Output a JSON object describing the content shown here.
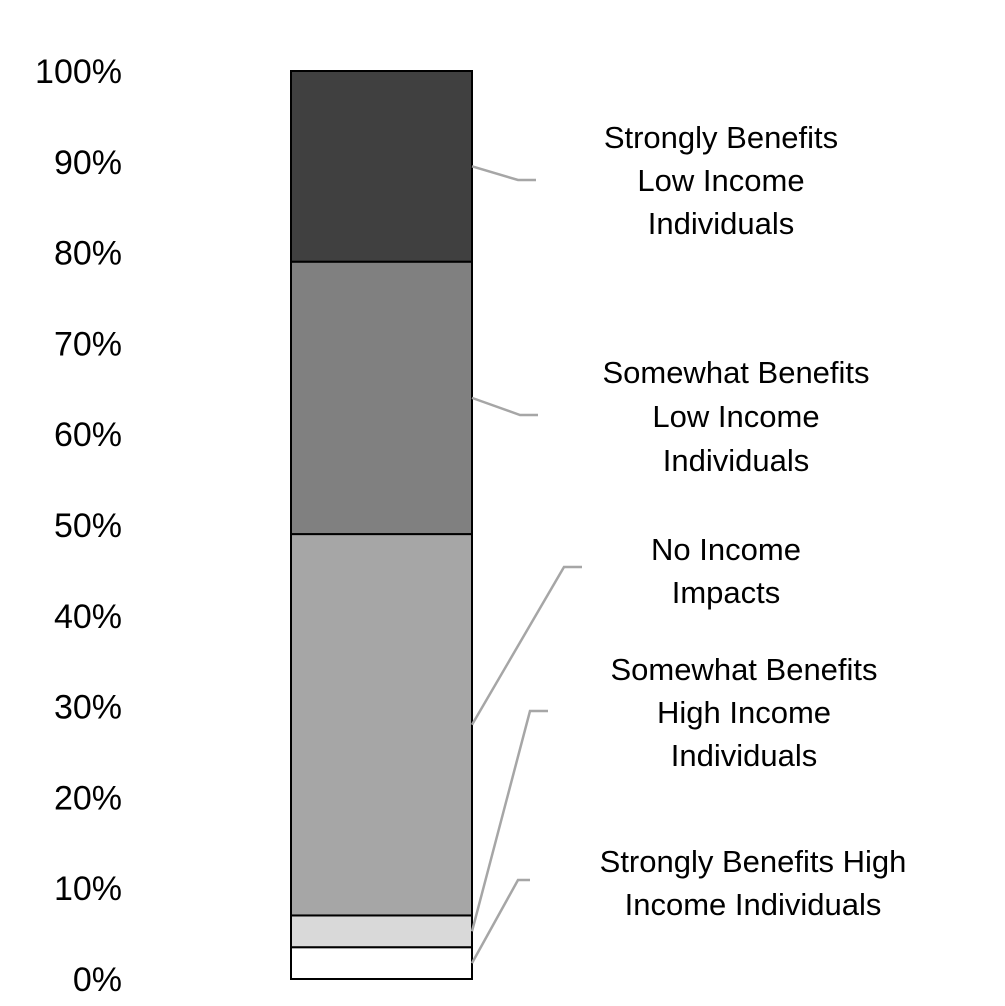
{
  "chart_data": {
    "type": "bar",
    "stacked": true,
    "categories": [
      ""
    ],
    "ylim": [
      0,
      100
    ],
    "y_ticks": [
      "0%",
      "10%",
      "20%",
      "30%",
      "40%",
      "50%",
      "60%",
      "70%",
      "80%",
      "90%",
      "100%"
    ],
    "y_tick_values": [
      0,
      10,
      20,
      30,
      40,
      50,
      60,
      70,
      80,
      90,
      100
    ],
    "grid": false,
    "legend_placement": "right",
    "series": [
      {
        "name": "Strongly Benefits High Income Individuals",
        "label_lines": [
          "Strongly Benefits High",
          "Income Individuals"
        ],
        "values": [
          3.5
        ],
        "color": "#ffffff"
      },
      {
        "name": "Somewhat Benefits High Income Individuals",
        "label_lines": [
          "Somewhat Benefits",
          "High Income",
          "Individuals"
        ],
        "values": [
          3.5
        ],
        "color": "#d9d9d9"
      },
      {
        "name": "No Income Impacts",
        "label_lines": [
          "No Income",
          "Impacts"
        ],
        "values": [
          42
        ],
        "color": "#a6a6a6"
      },
      {
        "name": "Somewhat Benefits Low Income Individuals",
        "label_lines": [
          "Somewhat Benefits",
          "Low Income",
          "Individuals"
        ],
        "values": [
          30
        ],
        "color": "#808080"
      },
      {
        "name": "Strongly Benefits Low Income Individuals",
        "label_lines": [
          "Strongly Benefits",
          "Low Income",
          "Individuals"
        ],
        "values": [
          21
        ],
        "color": "#404040"
      }
    ]
  }
}
